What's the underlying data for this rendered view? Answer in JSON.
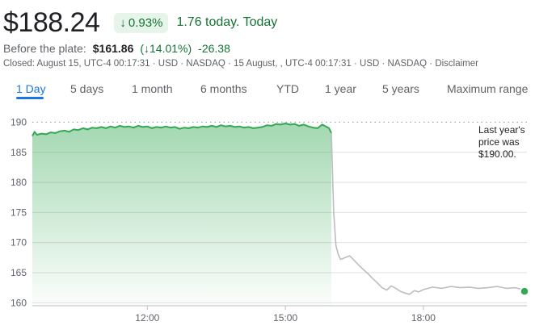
{
  "quote": {
    "price": "$188.24",
    "change_pct": "0.93%",
    "change_arrow": "↓",
    "today_text": "1.76 today. Today"
  },
  "preplate": {
    "label": "Before the plate:",
    "price": "$161.86",
    "pct": "(↓14.01%)",
    "abs": "-26.38"
  },
  "closed_line": "Closed: August 15, UTC-4 00:17:31 · USD · NASDAQ · 15 August, , UTC-4 00:17:31 · USD · NASDAQ · Disclaimer",
  "tabs": [
    {
      "label": "1 Day",
      "active": true
    },
    {
      "label": "5 days"
    },
    {
      "label": "1 month"
    },
    {
      "label": "6 months"
    },
    {
      "label": "YTD"
    },
    {
      "label": "1 year"
    },
    {
      "label": "5 years"
    },
    {
      "label": "Maximum range"
    }
  ],
  "annotation": "Last year's price was $190.00.",
  "colors": {
    "up_green": "#137333",
    "line_green": "#34a853",
    "line_gray": "#bdbdbd",
    "accent_blue": "#1a73e8"
  },
  "chart_data": {
    "type": "line",
    "x_ticks": [
      "12:00",
      "15:00",
      "18:00"
    ],
    "x_tick_values": [
      12,
      15,
      18
    ],
    "y_ticks": [
      160,
      165,
      170,
      175,
      180,
      185,
      190
    ],
    "ylim": [
      159.5,
      191
    ],
    "xlim": [
      9.5,
      20.25
    ],
    "reference_line": 190,
    "series": [
      {
        "segment": "regular-session",
        "color": "#34a853",
        "x": [
          9.5,
          9.55,
          9.6,
          9.7,
          9.8,
          9.9,
          10.0,
          10.1,
          10.2,
          10.3,
          10.4,
          10.5,
          10.6,
          10.7,
          10.8,
          10.9,
          11.0,
          11.1,
          11.2,
          11.3,
          11.4,
          11.5,
          11.6,
          11.7,
          11.8,
          11.9,
          12.0,
          12.1,
          12.2,
          12.3,
          12.4,
          12.5,
          12.6,
          12.7,
          12.8,
          12.9,
          13.0,
          13.1,
          13.2,
          13.3,
          13.4,
          13.5,
          13.6,
          13.7,
          13.8,
          13.9,
          14.0,
          14.1,
          14.2,
          14.3,
          14.4,
          14.5,
          14.6,
          14.7,
          14.8,
          14.9,
          15.0,
          15.1,
          15.2,
          15.3,
          15.4,
          15.5,
          15.6,
          15.7,
          15.8,
          15.9,
          15.95,
          16.0
        ],
        "y": [
          187.7,
          188.4,
          187.9,
          188.1,
          188.0,
          188.3,
          188.2,
          188.5,
          188.6,
          188.4,
          188.8,
          188.7,
          189.0,
          188.8,
          189.1,
          189.0,
          189.2,
          189.0,
          189.3,
          189.1,
          189.4,
          189.2,
          189.3,
          189.1,
          189.4,
          189.2,
          189.3,
          189.0,
          189.2,
          189.1,
          189.3,
          189.1,
          189.2,
          188.9,
          189.1,
          189.0,
          189.2,
          189.1,
          189.3,
          189.2,
          189.4,
          189.2,
          189.5,
          189.3,
          189.4,
          189.2,
          189.3,
          189.1,
          189.2,
          189.0,
          189.1,
          189.2,
          189.5,
          189.4,
          189.7,
          189.6,
          189.8,
          189.6,
          189.7,
          189.4,
          189.6,
          189.3,
          189.1,
          189.0,
          189.6,
          189.2,
          189.0,
          188.2
        ]
      },
      {
        "segment": "after-hours",
        "color": "#bdbdbd",
        "x": [
          16.0,
          16.05,
          16.1,
          16.15,
          16.2,
          16.3,
          16.4,
          16.5,
          16.6,
          16.7,
          16.8,
          16.9,
          17.0,
          17.1,
          17.2,
          17.3,
          17.4,
          17.5,
          17.6,
          17.7,
          17.8,
          17.9,
          18.0,
          18.2,
          18.4,
          18.6,
          18.8,
          19.0,
          19.2,
          19.4,
          19.6,
          19.8,
          20.0,
          20.1,
          20.25
        ],
        "y": [
          188.2,
          175.0,
          169.5,
          168.0,
          167.2,
          167.5,
          167.8,
          167.0,
          166.2,
          165.5,
          164.8,
          164.0,
          163.3,
          162.5,
          162.1,
          162.8,
          162.4,
          161.9,
          161.6,
          161.4,
          162.0,
          161.8,
          162.2,
          162.6,
          162.4,
          162.7,
          162.5,
          162.6,
          162.4,
          162.5,
          162.7,
          162.4,
          162.5,
          162.3,
          161.9
        ]
      }
    ]
  }
}
